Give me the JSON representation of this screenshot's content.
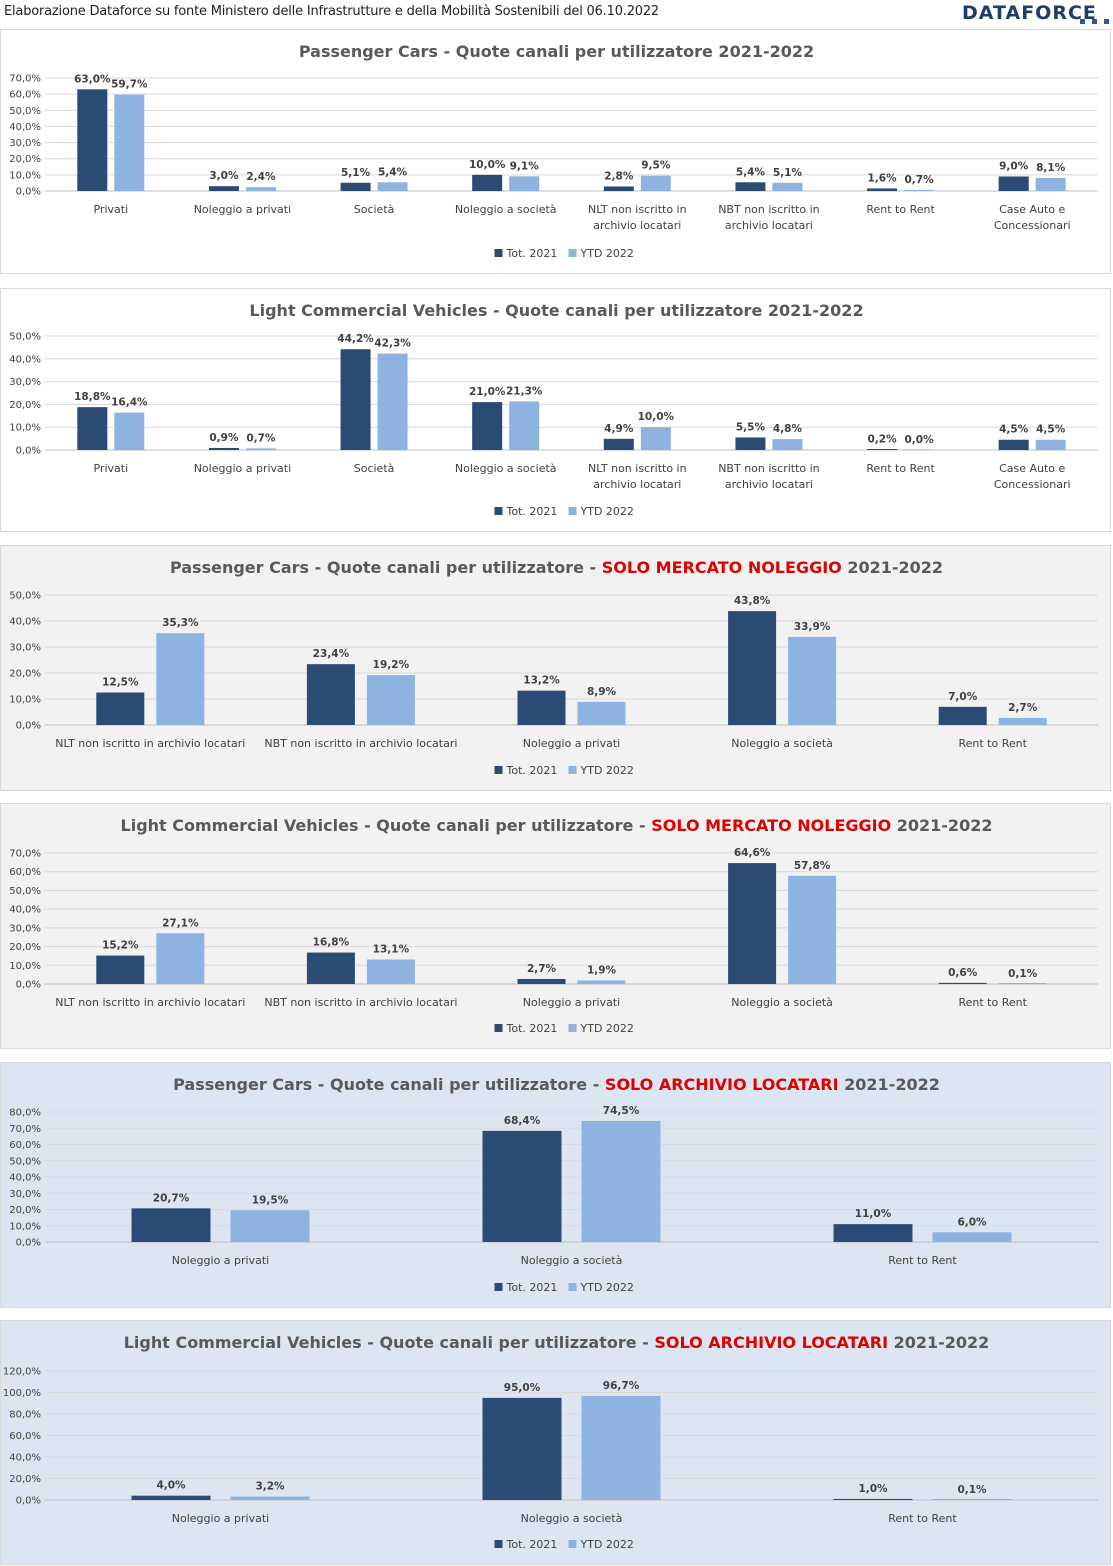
{
  "header": {
    "source_text": "Elaborazione Dataforce su fonte Ministero delle Infrastrutture e della Mobilità Sostenibili del 06.10.2022",
    "logo_text": "DATAFORCE"
  },
  "colors": {
    "tot2021": "#2b4a74",
    "ytd2022": "#8fb3e0",
    "title_red": "#e00000"
  },
  "legend": [
    "Tot. 2021",
    "YTD 2022"
  ],
  "chart_data": [
    {
      "type": "bar",
      "title_main": "Passenger Cars - Quote canali per utilizzatore",
      "title_highlight": "",
      "title_tail": " 2021-2022",
      "background": "#ffffff",
      "ylim": [
        0,
        70
      ],
      "ystep": 10,
      "categories": [
        [
          "Privati"
        ],
        [
          "Noleggio a privati"
        ],
        [
          "Società"
        ],
        [
          "Noleggio a società"
        ],
        [
          "NLT non iscritto in",
          "archivio locatari"
        ],
        [
          "NBT non iscritto in",
          "archivio locatari"
        ],
        [
          "Rent to Rent"
        ],
        [
          "Case Auto e",
          "Concessionari"
        ]
      ],
      "series": [
        {
          "name": "Tot. 2021",
          "values": [
            63.0,
            3.0,
            5.1,
            10.0,
            2.8,
            5.4,
            1.6,
            9.0
          ]
        },
        {
          "name": "YTD 2022",
          "values": [
            59.7,
            2.4,
            5.4,
            9.1,
            9.5,
            5.1,
            0.7,
            8.1
          ]
        }
      ]
    },
    {
      "type": "bar",
      "title_main": "Light Commercial Vehicles - Quote canali per utilizzatore",
      "title_highlight": "",
      "title_tail": " 2021-2022",
      "background": "#ffffff",
      "ylim": [
        0,
        50
      ],
      "ystep": 10,
      "categories": [
        [
          "Privati"
        ],
        [
          "Noleggio a privati"
        ],
        [
          "Società"
        ],
        [
          "Noleggio a società"
        ],
        [
          "NLT non iscritto in",
          "archivio locatari"
        ],
        [
          "NBT non iscritto in",
          "archivio locatari"
        ],
        [
          "Rent to Rent"
        ],
        [
          "Case Auto e",
          "Concessionari"
        ]
      ],
      "series": [
        {
          "name": "Tot. 2021",
          "values": [
            18.8,
            0.9,
            44.2,
            21.0,
            4.9,
            5.5,
            0.2,
            4.5
          ]
        },
        {
          "name": "YTD 2022",
          "values": [
            16.4,
            0.7,
            42.3,
            21.3,
            10.0,
            4.8,
            0.0,
            4.5
          ]
        }
      ]
    },
    {
      "type": "bar",
      "title_main": "Passenger Cars - Quote canali per utilizzatore - ",
      "title_highlight": "SOLO MERCATO NOLEGGIO",
      "title_tail": " 2021-2022",
      "background": "#f2f2f2",
      "ylim": [
        0,
        50
      ],
      "ystep": 10,
      "categories": [
        [
          "NLT non iscritto in archivio locatari"
        ],
        [
          "NBT non iscritto in archivio locatari"
        ],
        [
          "Noleggio a privati"
        ],
        [
          "Noleggio a società"
        ],
        [
          "Rent to Rent"
        ]
      ],
      "series": [
        {
          "name": "Tot. 2021",
          "values": [
            12.5,
            23.4,
            13.2,
            43.8,
            7.0
          ]
        },
        {
          "name": "YTD 2022",
          "values": [
            35.3,
            19.2,
            8.9,
            33.9,
            2.7
          ]
        }
      ]
    },
    {
      "type": "bar",
      "title_main": "Light Commercial Vehicles - Quote canali per utilizzatore - ",
      "title_highlight": "SOLO MERCATO NOLEGGIO",
      "title_tail": " 2021-2022",
      "background": "#f2f2f2",
      "ylim": [
        0,
        70
      ],
      "ystep": 10,
      "categories": [
        [
          "NLT non iscritto in archivio locatari"
        ],
        [
          "NBT non iscritto in archivio locatari"
        ],
        [
          "Noleggio a privati"
        ],
        [
          "Noleggio a società"
        ],
        [
          "Rent to Rent"
        ]
      ],
      "series": [
        {
          "name": "Tot. 2021",
          "values": [
            15.2,
            16.8,
            2.7,
            64.6,
            0.6
          ]
        },
        {
          "name": "YTD 2022",
          "values": [
            27.1,
            13.1,
            1.9,
            57.8,
            0.1
          ]
        }
      ]
    },
    {
      "type": "bar",
      "title_main": "Passenger Cars - Quote canali per utilizzatore - ",
      "title_highlight": "SOLO ARCHIVIO LOCATARI",
      "title_tail": " 2021-2022",
      "background": "#dce6f2",
      "ylim": [
        0,
        80
      ],
      "ystep": 10,
      "categories": [
        [
          "Noleggio a privati"
        ],
        [
          "Noleggio a società"
        ],
        [
          "Rent to Rent"
        ]
      ],
      "series": [
        {
          "name": "Tot. 2021",
          "values": [
            20.7,
            68.4,
            11.0
          ]
        },
        {
          "name": "YTD 2022",
          "values": [
            19.5,
            74.5,
            6.0
          ]
        }
      ]
    },
    {
      "type": "bar",
      "title_main": "Light Commercial Vehicles - Quote canali per utilizzatore - ",
      "title_highlight": "SOLO ARCHIVIO LOCATARI",
      "title_tail": " 2021-2022",
      "background": "#dce6f2",
      "ylim": [
        0,
        120
      ],
      "ystep": 20,
      "categories": [
        [
          "Noleggio a privati"
        ],
        [
          "Noleggio a società"
        ],
        [
          "Rent to Rent"
        ]
      ],
      "series": [
        {
          "name": "Tot. 2021",
          "values": [
            4.0,
            95.0,
            1.0
          ]
        },
        {
          "name": "YTD 2022",
          "values": [
            3.2,
            96.7,
            0.1
          ]
        }
      ]
    }
  ]
}
